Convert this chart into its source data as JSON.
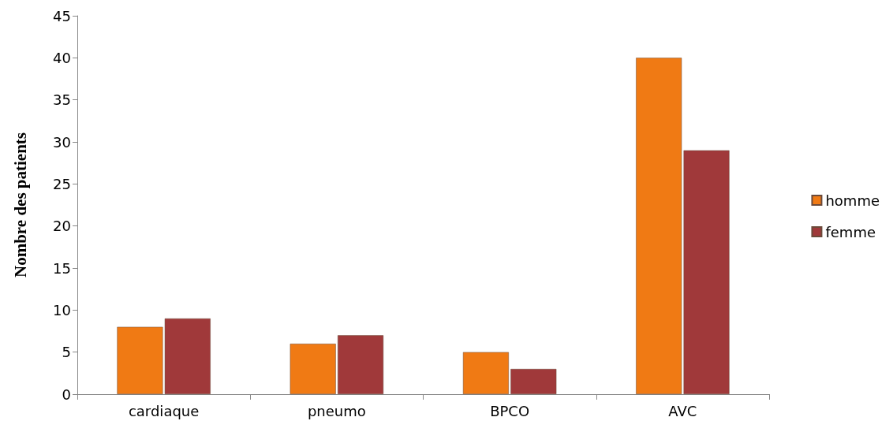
{
  "chart_data": {
    "type": "bar",
    "ylabel": "Nombre des patients",
    "categories": [
      "cardiaque",
      "pneumo",
      "BPCO",
      "AVC"
    ],
    "series": [
      {
        "name": "homme",
        "color": "#f07a14",
        "values": [
          8,
          6,
          5,
          40
        ]
      },
      {
        "name": "femme",
        "color": "#a0393a",
        "values": [
          9,
          7,
          3,
          29
        ]
      }
    ],
    "ylim": [
      0,
      45
    ],
    "yticks": [
      0,
      5,
      10,
      15,
      20,
      25,
      30,
      35,
      40,
      45
    ],
    "grid": false,
    "legend": "right"
  }
}
